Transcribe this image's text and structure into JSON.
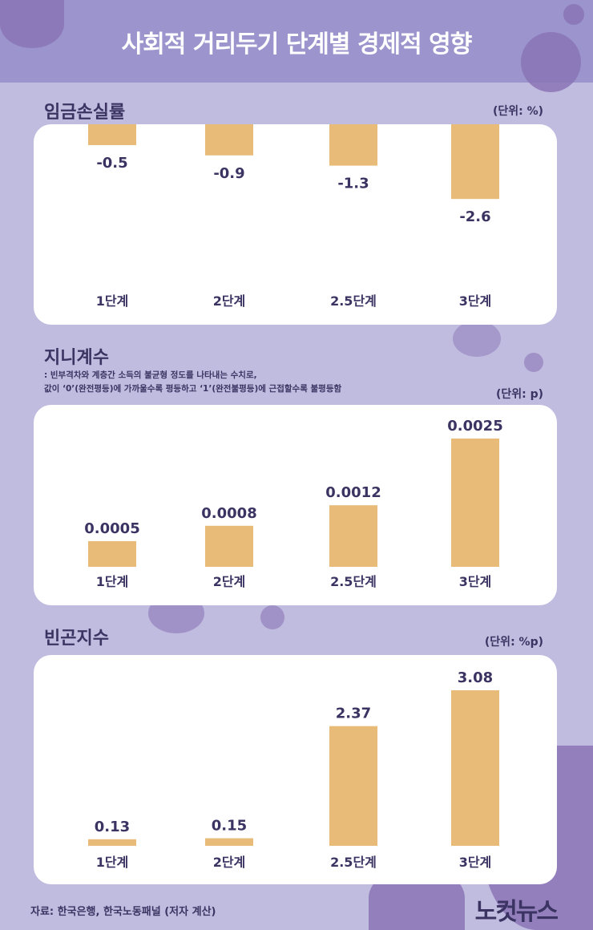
{
  "title": "사회적 거리두기 단계별 경제적 영향",
  "source": "자료: 한국은행, 한국노동패널 (저자 계산)",
  "logo": "노컷뉴스",
  "colors": {
    "bar": "#e9bb78",
    "text": "#3b3463",
    "header": "#9c94cc",
    "background": "#c0bcdf"
  },
  "chart_data": [
    {
      "type": "bar",
      "title": "임금손실률",
      "unit": "(단위: %)",
      "categories": [
        "1단계",
        "2단계",
        "2.5단계",
        "3단계"
      ],
      "values": [
        -0.5,
        -0.9,
        -1.3,
        -2.6
      ],
      "labels": [
        "-0.5",
        "-0.9",
        "-1.3",
        "-2.6"
      ]
    },
    {
      "type": "bar",
      "title": "지니계수",
      "unit": "(단위: p)",
      "note": [
        ": 빈부격차와 계층간 소득의 불균형 정도를 나타내는 수치로,",
        "값이 ‘0’(완전평등)에 가까울수록 평등하고 ‘1’(완전불평등)에 근접할수록 불평등함"
      ],
      "categories": [
        "1단계",
        "2단계",
        "2.5단계",
        "3단계"
      ],
      "values": [
        0.0005,
        0.0008,
        0.0012,
        0.0025
      ],
      "labels": [
        "0.0005",
        "0.0008",
        "0.0012",
        "0.0025"
      ]
    },
    {
      "type": "bar",
      "title": "빈곤지수",
      "unit": "(단위: %p)",
      "categories": [
        "1단계",
        "2단계",
        "2.5단계",
        "3단계"
      ],
      "values": [
        0.13,
        0.15,
        2.37,
        3.08
      ],
      "labels": [
        "0.13",
        "0.15",
        "2.37",
        "3.08"
      ]
    }
  ]
}
